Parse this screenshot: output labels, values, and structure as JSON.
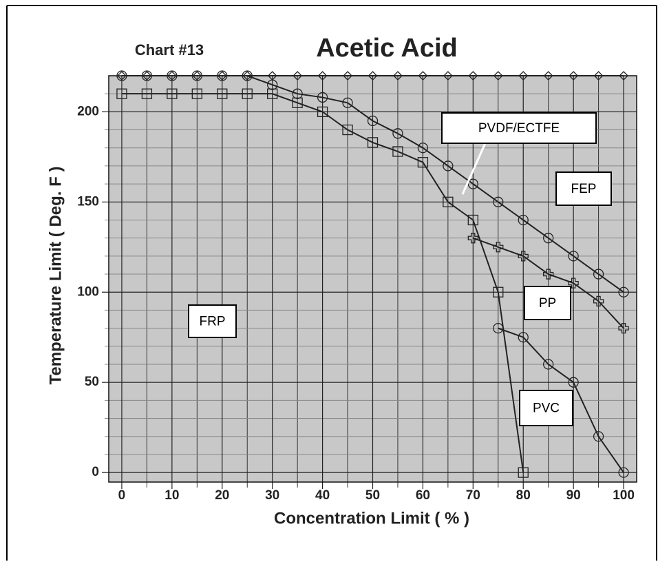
{
  "chart_data": {
    "type": "line",
    "title": "Acetic Acid",
    "subtitle": "Chart  #13",
    "x_label": "Concentration Limit ( % )",
    "y_label": "Temperature Limit ( Deg. F )",
    "xlim": [
      -2.6,
      102.6
    ],
    "ylim": [
      -5.3,
      220
    ],
    "xticks": [
      0,
      10,
      20,
      30,
      40,
      50,
      60,
      70,
      80,
      90,
      100
    ],
    "yticks": [
      0,
      50,
      100,
      150,
      200
    ],
    "grid": true,
    "background": "#c8c8c8",
    "series": [
      {
        "name": "FEP",
        "color": "#222222",
        "marker": "diamond",
        "x": [
          0,
          5,
          10,
          15,
          20,
          25,
          30,
          35,
          40,
          45,
          50,
          55,
          60,
          65,
          70,
          75,
          80,
          85,
          90,
          95,
          100
        ],
        "values": [
          220,
          220,
          220,
          220,
          220,
          220,
          220,
          220,
          220,
          220,
          220,
          220,
          220,
          220,
          220,
          220,
          220,
          220,
          220,
          220,
          220
        ]
      },
      {
        "name": "PVDF/ECTFE",
        "color": "#222222",
        "marker": "circle",
        "x": [
          0,
          5,
          10,
          15,
          20,
          25,
          30,
          35,
          40,
          45,
          50,
          55,
          60,
          65,
          70,
          75,
          80,
          85,
          90,
          95,
          100
        ],
        "values": [
          220,
          220,
          220,
          220,
          220,
          220,
          215,
          210,
          208,
          205,
          195,
          188,
          180,
          170,
          160,
          150,
          140,
          130,
          120,
          110,
          100
        ]
      },
      {
        "name": "FRP",
        "color": "#222222",
        "marker": "square",
        "x": [
          0,
          5,
          10,
          15,
          20,
          25,
          30,
          35,
          40,
          45,
          50,
          55,
          60,
          65,
          70,
          75,
          80
        ],
        "values": [
          210,
          210,
          210,
          210,
          210,
          210,
          210,
          205,
          200,
          190,
          183,
          178,
          172,
          150,
          140,
          100,
          0
        ]
      },
      {
        "name": "PP",
        "color": "#222222",
        "marker": "cross",
        "x": [
          70,
          75,
          80,
          85,
          90,
          95,
          100
        ],
        "values": [
          130,
          125,
          120,
          110,
          105,
          95,
          80
        ]
      },
      {
        "name": "PVC",
        "color": "#222222",
        "marker": "circle",
        "x": [
          75,
          80,
          85,
          90,
          95,
          100
        ],
        "values": [
          80,
          75,
          60,
          50,
          20,
          0
        ]
      }
    ]
  }
}
